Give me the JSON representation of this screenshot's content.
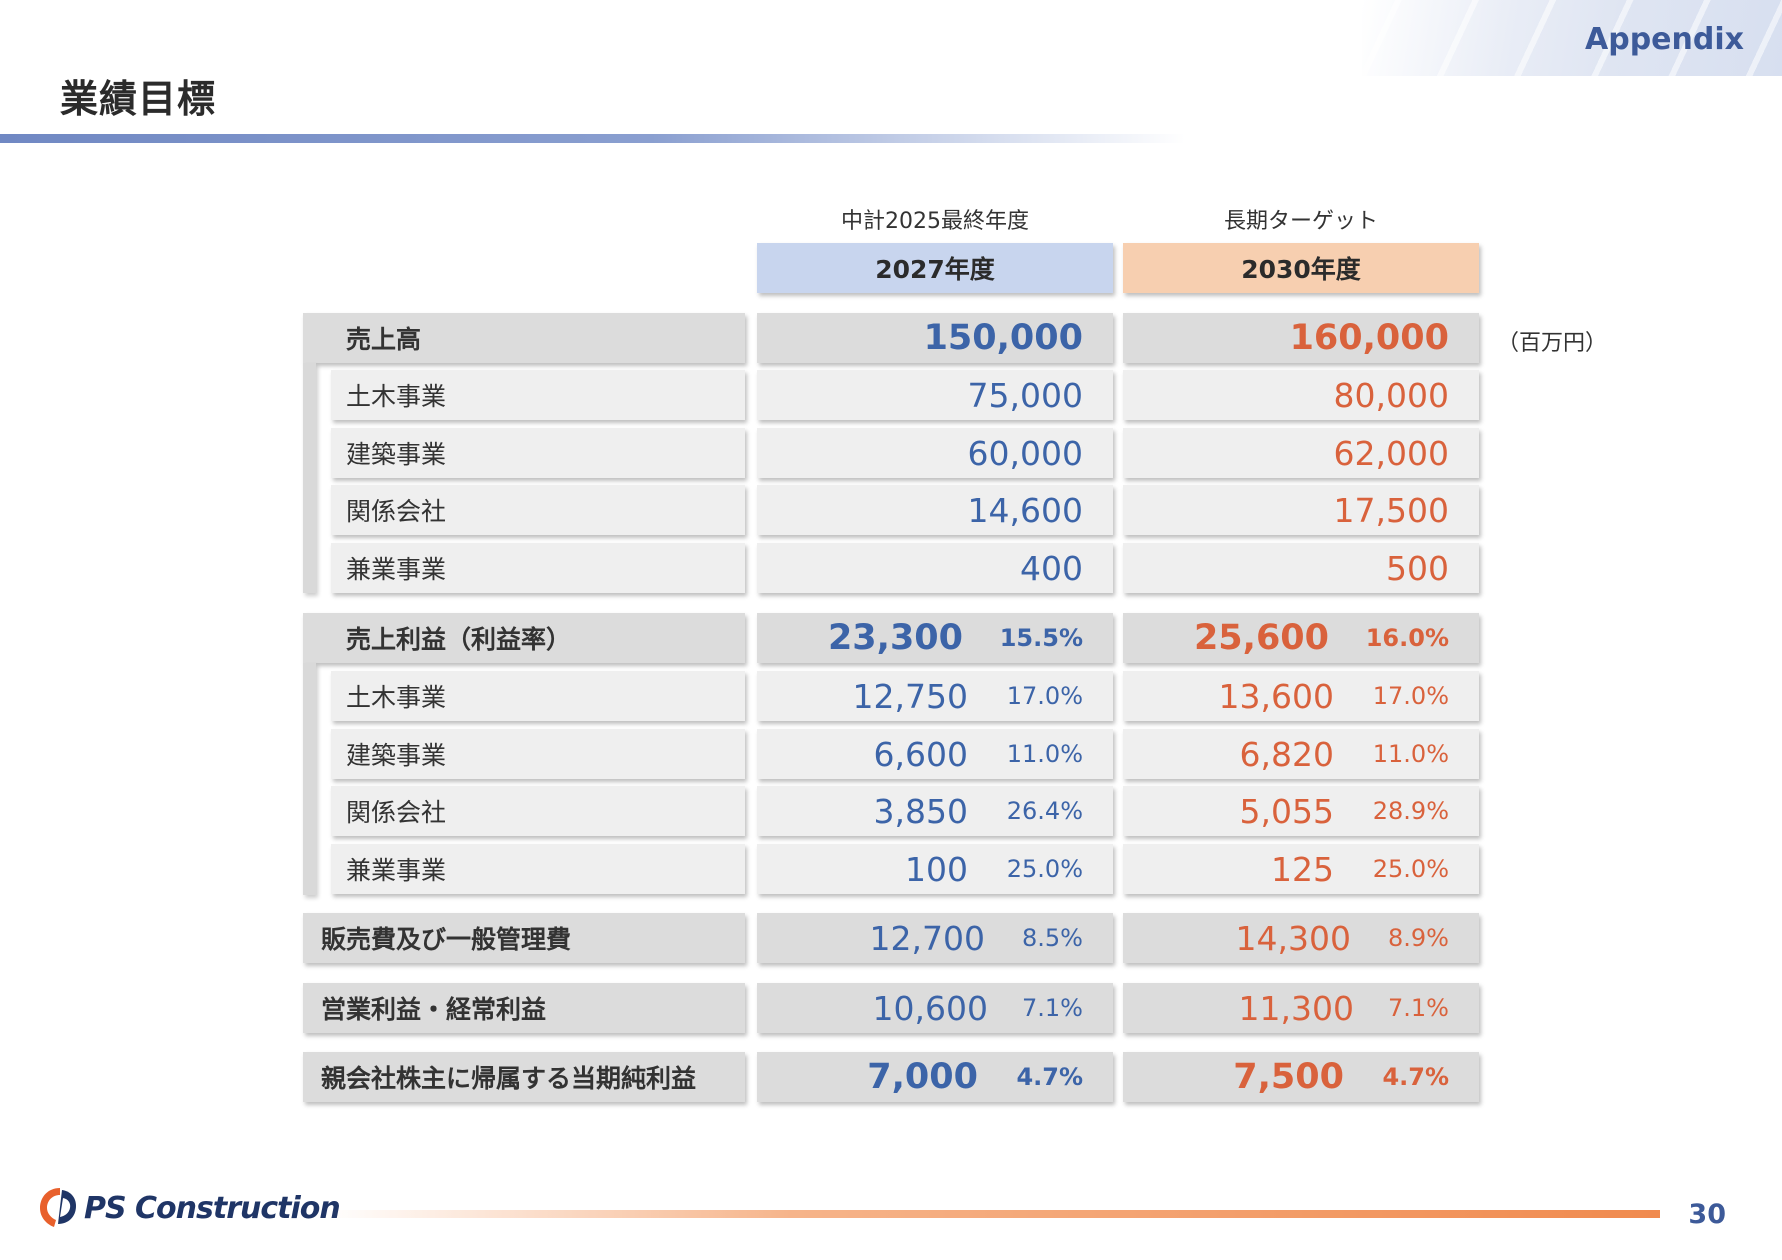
{
  "header": {
    "tag": "Appendix",
    "title": "業績目標"
  },
  "columns": [
    {
      "caption": "中計2025最終年度",
      "label": "2027年度",
      "color": "#c8d5ee"
    },
    {
      "caption": "長期ターゲット",
      "label": "2030年度",
      "color": "#f7cfb0"
    }
  ],
  "unit": "（百万円）",
  "rows": {
    "sales": {
      "label": "売上高",
      "v1": "150,000",
      "v2": "160,000"
    },
    "sales_civil": {
      "label": "土木事業",
      "v1": "75,000",
      "v2": "80,000"
    },
    "sales_building": {
      "label": "建築事業",
      "v1": "60,000",
      "v2": "62,000"
    },
    "sales_affiliates": {
      "label": "関係会社",
      "v1": "14,600",
      "v2": "17,500"
    },
    "sales_other": {
      "label": "兼業事業",
      "v1": "400",
      "v2": "500"
    },
    "gross": {
      "label": "売上利益（利益率）",
      "v1": "23,300",
      "p1": "15.5%",
      "v2": "25,600",
      "p2": "16.0%"
    },
    "gross_civil": {
      "label": "土木事業",
      "v1": "12,750",
      "p1": "17.0%",
      "v2": "13,600",
      "p2": "17.0%"
    },
    "gross_building": {
      "label": "建築事業",
      "v1": "6,600",
      "p1": "11.0%",
      "v2": "6,820",
      "p2": "11.0%"
    },
    "gross_affiliates": {
      "label": "関係会社",
      "v1": "3,850",
      "p1": "26.4%",
      "v2": "5,055",
      "p2": "28.9%"
    },
    "gross_other": {
      "label": "兼業事業",
      "v1": "100",
      "p1": "25.0%",
      "v2": "125",
      "p2": "25.0%"
    },
    "sga": {
      "label": "販売費及び一般管理費",
      "v1": "12,700",
      "p1": "8.5%",
      "v2": "14,300",
      "p2": "8.9%"
    },
    "operating": {
      "label": "営業利益・経常利益",
      "v1": "10,600",
      "p1": "7.1%",
      "v2": "11,300",
      "p2": "7.1%"
    },
    "net": {
      "label": "親会社株主に帰属する当期純利益",
      "v1": "7,000",
      "p1": "4.7%",
      "v2": "7,500",
      "p2": "4.7%"
    }
  },
  "footer": {
    "company": "PS Construction",
    "page": "30"
  },
  "colors": {
    "blue_value": "#3c64a8",
    "orange_value": "#d9623c",
    "heading_blue": "#3d5a99"
  }
}
